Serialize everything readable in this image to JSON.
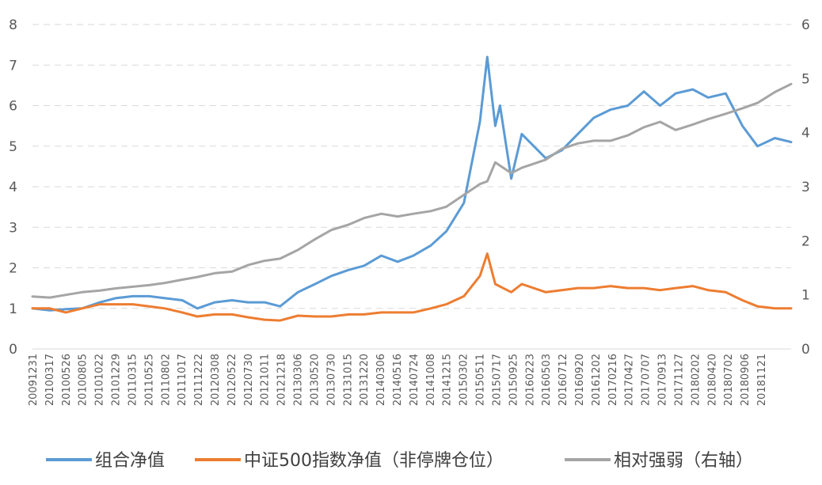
{
  "chart_data": {
    "type": "line",
    "title": "",
    "xlabel": "",
    "ylabel": "",
    "grid": true,
    "legend_position": "bottom",
    "y_left": {
      "range": [
        0,
        8
      ],
      "ticks": [
        "0",
        "1",
        "2",
        "3",
        "4",
        "5",
        "6",
        "7",
        "8"
      ]
    },
    "y_right": {
      "range": [
        0,
        6
      ],
      "ticks": [
        "0",
        "1",
        "2",
        "3",
        "4",
        "5",
        "6"
      ]
    },
    "x_tick_labels": [
      "20091231",
      "20100317",
      "20100526",
      "20100805",
      "20101022",
      "20101229",
      "20110315",
      "20110525",
      "20110802",
      "20111017",
      "20111222",
      "20120308",
      "20120522",
      "20120730",
      "20121011",
      "20121218",
      "20130306",
      "20130520",
      "20130730",
      "20131015",
      "20131220",
      "20140306",
      "20140516",
      "20140724",
      "20141008",
      "20141215",
      "20150302",
      "20150511",
      "20150717",
      "20150925",
      "20160223",
      "20160503",
      "20160712",
      "20160920",
      "20161202",
      "20170216",
      "20170427",
      "20170707",
      "20170913",
      "20171127",
      "20180202",
      "20180420",
      "20180702",
      "20180906",
      "20181121"
    ],
    "x_end": "20190131",
    "series": [
      {
        "name": "组合净值",
        "axis": "left",
        "color": "#5B9BD5",
        "points": [
          [
            "20091231",
            1.0
          ],
          [
            "20100317",
            0.95
          ],
          [
            "20100526",
            0.98
          ],
          [
            "20100805",
            1.0
          ],
          [
            "20101022",
            1.15
          ],
          [
            "20101229",
            1.25
          ],
          [
            "20110315",
            1.3
          ],
          [
            "20110525",
            1.3
          ],
          [
            "20110802",
            1.25
          ],
          [
            "20111017",
            1.2
          ],
          [
            "20111222",
            1.0
          ],
          [
            "20120308",
            1.15
          ],
          [
            "20120522",
            1.2
          ],
          [
            "20120730",
            1.15
          ],
          [
            "20121011",
            1.15
          ],
          [
            "20121218",
            1.05
          ],
          [
            "20130306",
            1.4
          ],
          [
            "20130520",
            1.6
          ],
          [
            "20130730",
            1.8
          ],
          [
            "20131015",
            1.95
          ],
          [
            "20131220",
            2.05
          ],
          [
            "20140306",
            2.3
          ],
          [
            "20140516",
            2.15
          ],
          [
            "20140724",
            2.3
          ],
          [
            "20141008",
            2.55
          ],
          [
            "20141215",
            2.9
          ],
          [
            "20150302",
            3.6
          ],
          [
            "20150511",
            5.6
          ],
          [
            "20150612",
            7.2
          ],
          [
            "20150717",
            5.5
          ],
          [
            "20150807",
            6.0
          ],
          [
            "20150925",
            4.2
          ],
          [
            "20151110",
            5.3
          ],
          [
            "20160223",
            4.7
          ],
          [
            "20160503",
            4.9
          ],
          [
            "20160712",
            5.3
          ],
          [
            "20160920",
            5.7
          ],
          [
            "20161202",
            5.9
          ],
          [
            "20170216",
            6.0
          ],
          [
            "20170427",
            6.35
          ],
          [
            "20170707",
            6.0
          ],
          [
            "20170913",
            6.3
          ],
          [
            "20171127",
            6.4
          ],
          [
            "20180202",
            6.2
          ],
          [
            "20180420",
            6.3
          ],
          [
            "20180702",
            5.5
          ],
          [
            "20180906",
            5.0
          ],
          [
            "20181121",
            5.2
          ],
          [
            "20190131",
            5.1
          ]
        ]
      },
      {
        "name": "中证500指数净值（非停牌仓位）",
        "axis": "left",
        "color": "#ED7D31",
        "points": [
          [
            "20091231",
            1.0
          ],
          [
            "20100317",
            1.0
          ],
          [
            "20100526",
            0.9
          ],
          [
            "20100805",
            1.0
          ],
          [
            "20101022",
            1.1
          ],
          [
            "20101229",
            1.1
          ],
          [
            "20110315",
            1.1
          ],
          [
            "20110525",
            1.05
          ],
          [
            "20110802",
            1.0
          ],
          [
            "20111017",
            0.9
          ],
          [
            "20111222",
            0.8
          ],
          [
            "20120308",
            0.85
          ],
          [
            "20120522",
            0.85
          ],
          [
            "20120730",
            0.78
          ],
          [
            "20121011",
            0.72
          ],
          [
            "20121218",
            0.7
          ],
          [
            "20130306",
            0.82
          ],
          [
            "20130520",
            0.8
          ],
          [
            "20130730",
            0.8
          ],
          [
            "20131015",
            0.85
          ],
          [
            "20131220",
            0.85
          ],
          [
            "20140306",
            0.9
          ],
          [
            "20140516",
            0.9
          ],
          [
            "20140724",
            0.9
          ],
          [
            "20141008",
            1.0
          ],
          [
            "20141215",
            1.1
          ],
          [
            "20150302",
            1.3
          ],
          [
            "20150511",
            1.8
          ],
          [
            "20150612",
            2.35
          ],
          [
            "20150717",
            1.6
          ],
          [
            "20150925",
            1.4
          ],
          [
            "20151110",
            1.6
          ],
          [
            "20160223",
            1.4
          ],
          [
            "20160503",
            1.45
          ],
          [
            "20160712",
            1.5
          ],
          [
            "20160920",
            1.5
          ],
          [
            "20161202",
            1.55
          ],
          [
            "20170216",
            1.5
          ],
          [
            "20170427",
            1.5
          ],
          [
            "20170707",
            1.45
          ],
          [
            "20170913",
            1.5
          ],
          [
            "20171127",
            1.55
          ],
          [
            "20180202",
            1.45
          ],
          [
            "20180420",
            1.4
          ],
          [
            "20180702",
            1.2
          ],
          [
            "20180906",
            1.05
          ],
          [
            "20181121",
            1.0
          ],
          [
            "20190131",
            1.0
          ]
        ]
      },
      {
        "name": "相对强弱（右轴）",
        "axis": "right",
        "color": "#A5A5A5",
        "points": [
          [
            "20091231",
            0.97
          ],
          [
            "20100317",
            0.95
          ],
          [
            "20100526",
            1.0
          ],
          [
            "20100805",
            1.05
          ],
          [
            "20101022",
            1.08
          ],
          [
            "20101229",
            1.12
          ],
          [
            "20110315",
            1.15
          ],
          [
            "20110525",
            1.18
          ],
          [
            "20110802",
            1.22
          ],
          [
            "20111017",
            1.28
          ],
          [
            "20111222",
            1.33
          ],
          [
            "20120308",
            1.4
          ],
          [
            "20120522",
            1.43
          ],
          [
            "20120730",
            1.55
          ],
          [
            "20121011",
            1.63
          ],
          [
            "20121218",
            1.67
          ],
          [
            "20130306",
            1.83
          ],
          [
            "20130520",
            2.03
          ],
          [
            "20130730",
            2.2
          ],
          [
            "20131015",
            2.3
          ],
          [
            "20131220",
            2.42
          ],
          [
            "20140306",
            2.5
          ],
          [
            "20140516",
            2.45
          ],
          [
            "20140724",
            2.5
          ],
          [
            "20141008",
            2.55
          ],
          [
            "20141215",
            2.63
          ],
          [
            "20150302",
            2.85
          ],
          [
            "20150511",
            3.05
          ],
          [
            "20150612",
            3.1
          ],
          [
            "20150717",
            3.45
          ],
          [
            "20150925",
            3.25
          ],
          [
            "20151110",
            3.35
          ],
          [
            "20160223",
            3.5
          ],
          [
            "20160503",
            3.7
          ],
          [
            "20160712",
            3.8
          ],
          [
            "20160920",
            3.85
          ],
          [
            "20161202",
            3.85
          ],
          [
            "20170216",
            3.95
          ],
          [
            "20170427",
            4.1
          ],
          [
            "20170707",
            4.2
          ],
          [
            "20170913",
            4.05
          ],
          [
            "20171127",
            4.15
          ],
          [
            "20180202",
            4.25
          ],
          [
            "20180420",
            4.35
          ],
          [
            "20180702",
            4.45
          ],
          [
            "20180906",
            4.55
          ],
          [
            "20181121",
            4.75
          ],
          [
            "20190131",
            4.9
          ]
        ]
      }
    ]
  }
}
